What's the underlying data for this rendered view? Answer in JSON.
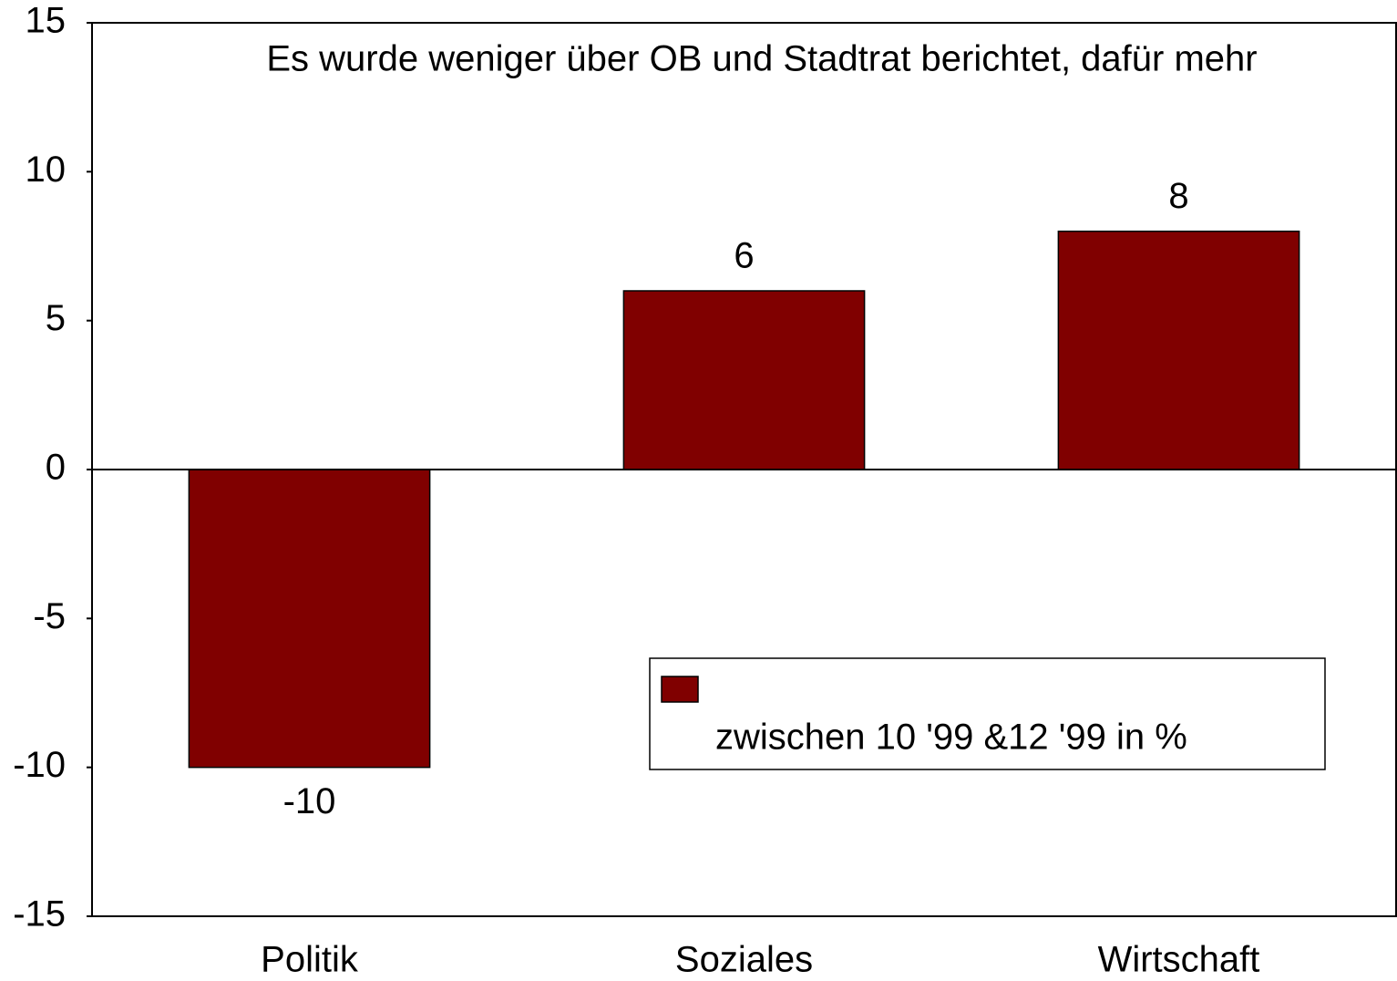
{
  "chart_data": {
    "type": "bar",
    "title": "Es wurde weniger über OB und Stadtrat berichtet, dafür mehr",
    "categories": [
      "Politik",
      "Soziales",
      "Wirtschaft"
    ],
    "series": [
      {
        "name": "zwischen 10 '99 &12 '99 in %",
        "color": "#800000",
        "values": [
          -10,
          6,
          8
        ]
      }
    ],
    "ylim": [
      -15,
      15
    ],
    "yticks": [
      -15,
      -10,
      -5,
      0,
      5,
      10,
      15
    ],
    "grid": false,
    "legend": "lower right"
  }
}
